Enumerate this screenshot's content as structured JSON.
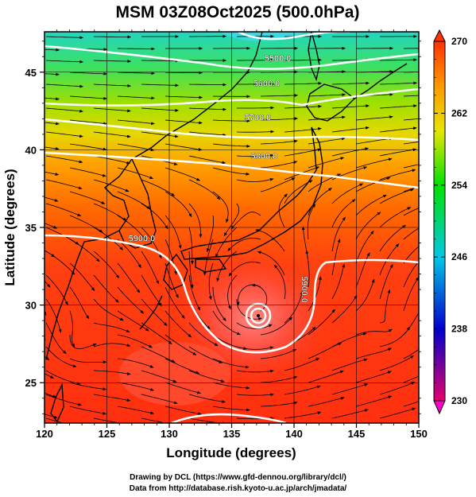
{
  "title": "MSM 03Z08Oct2025 (500.0hPa)",
  "chart_data": {
    "type": "heatmap",
    "title": "MSM 03Z08Oct2025 (500.0hPa)",
    "xlabel": "Longitude (degrees)",
    "ylabel": "Latitude  (degrees)",
    "xlim": [
      120,
      150
    ],
    "ylim": [
      22.4,
      47.6
    ],
    "x_ticks": [
      "120",
      "125",
      "130",
      "135",
      "140",
      "145",
      "150"
    ],
    "y_ticks": [
      "25",
      "30",
      "35",
      "40",
      "45"
    ],
    "colorbar": {
      "range": [
        230,
        270
      ],
      "tick_labels": [
        "270",
        "262",
        "254",
        "246",
        "238",
        "230"
      ],
      "colors": [
        "#e6006e",
        "#0000cc",
        "#00c8e6",
        "#00e100",
        "#e6e600",
        "#ff9600",
        "#ff3200"
      ]
    },
    "contours": [
      {
        "label": "5500.0",
        "lon": 138.7,
        "lat": 45.7
      },
      {
        "label": "5600.0",
        "lon": 137.8,
        "lat": 44.1
      },
      {
        "label": "5700.0",
        "lon": 137.1,
        "lat": 41.9
      },
      {
        "label": "5800.0",
        "lon": 137.6,
        "lat": 39.4
      },
      {
        "label": "5900.0",
        "lon": 127.8,
        "lat": 34.1
      },
      {
        "label": "5900.0",
        "lon": 140.6,
        "lat": 31.0
      }
    ],
    "vortex_center": {
      "lon": 136.8,
      "lat": 30.0
    },
    "grid": true
  },
  "credits": {
    "line1": "Drawing by DCL (https://www.gfd-dennou.org/library/dcl/)",
    "line2": "Data from http://database.rish.kyoto-u.ac.jp/arch/jmadata/"
  }
}
